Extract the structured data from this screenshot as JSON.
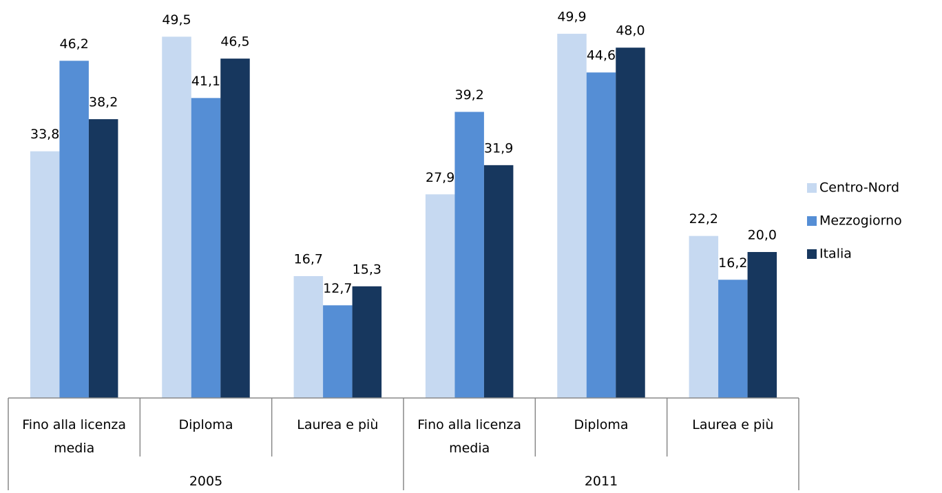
{
  "chart_data": {
    "type": "bar",
    "categories": [
      "Fino alla licenza media",
      "Diploma",
      "Laurea e più",
      "Fino alla licenza media",
      "Diploma",
      "Laurea e più"
    ],
    "groups": [
      "2005",
      "2011"
    ],
    "series": [
      {
        "name": "Centro-Nord",
        "color": "#c6d9f1",
        "values": [
          33.8,
          49.5,
          16.7,
          27.9,
          49.9,
          22.2
        ],
        "value_labels": [
          "33,8",
          "49,5",
          "16,7",
          "27,9",
          "49,9",
          "22,2"
        ]
      },
      {
        "name": "Mezzogiorno",
        "color": "#558ed5",
        "values": [
          46.2,
          41.1,
          12.7,
          39.2,
          44.6,
          16.2
        ],
        "value_labels": [
          "46,2",
          "41,1",
          "12,7",
          "39,2",
          "44,6",
          "16,2"
        ]
      },
      {
        "name": "Italia",
        "color": "#17375e",
        "values": [
          38.2,
          46.5,
          15.3,
          31.9,
          48.0,
          20.0
        ],
        "value_labels": [
          "38,2",
          "46,5",
          "15,3",
          "31,9",
          "48,0",
          "20,0"
        ]
      }
    ]
  }
}
